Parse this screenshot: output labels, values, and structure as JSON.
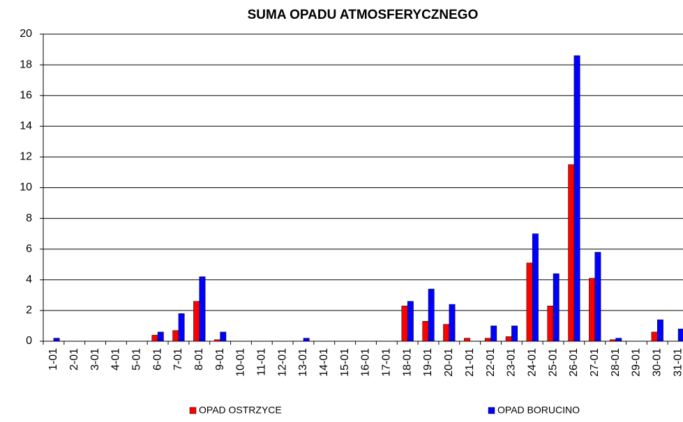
{
  "chart_data": {
    "type": "bar",
    "title": "SUMA OPADU ATMOSFERYCZNEGO",
    "categories": [
      "1-01",
      "2-01",
      "3-01",
      "4-01",
      "5-01",
      "6-01",
      "7-01",
      "8-01",
      "9-01",
      "10-01",
      "11-01",
      "12-01",
      "13-01",
      "14-01",
      "15-01",
      "16-01",
      "17-01",
      "18-01",
      "19-01",
      "20-01",
      "21-01",
      "22-01",
      "23-01",
      "24-01",
      "25-01",
      "26-01",
      "27-01",
      "28-01",
      "29-01",
      "30-01",
      "31-01"
    ],
    "series": [
      {
        "name": "OPAD OSTRZYCE",
        "color": "#ff0000",
        "values": [
          0,
          0,
          0,
          0,
          0,
          0.4,
          0.7,
          2.6,
          0.1,
          0,
          0,
          0,
          0,
          0,
          0,
          0,
          0,
          2.3,
          1.3,
          1.1,
          0.2,
          0.2,
          0.3,
          5.1,
          2.3,
          11.5,
          4.1,
          0.1,
          0,
          0.6,
          0
        ]
      },
      {
        "name": "OPAD BORUCINO",
        "color": "#0000ff",
        "values": [
          0.2,
          0,
          0,
          0,
          0,
          0.6,
          1.8,
          4.2,
          0.6,
          0,
          0,
          0,
          0.2,
          0,
          0,
          0,
          0,
          2.6,
          3.4,
          2.4,
          0,
          1.0,
          1.0,
          7.0,
          4.4,
          18.6,
          5.8,
          0.2,
          0,
          1.4,
          0.8
        ]
      }
    ],
    "ylim": [
      0,
      20
    ],
    "yticks": [
      0,
      2,
      4,
      6,
      8,
      10,
      12,
      14,
      16,
      18,
      20
    ],
    "grid": true
  }
}
